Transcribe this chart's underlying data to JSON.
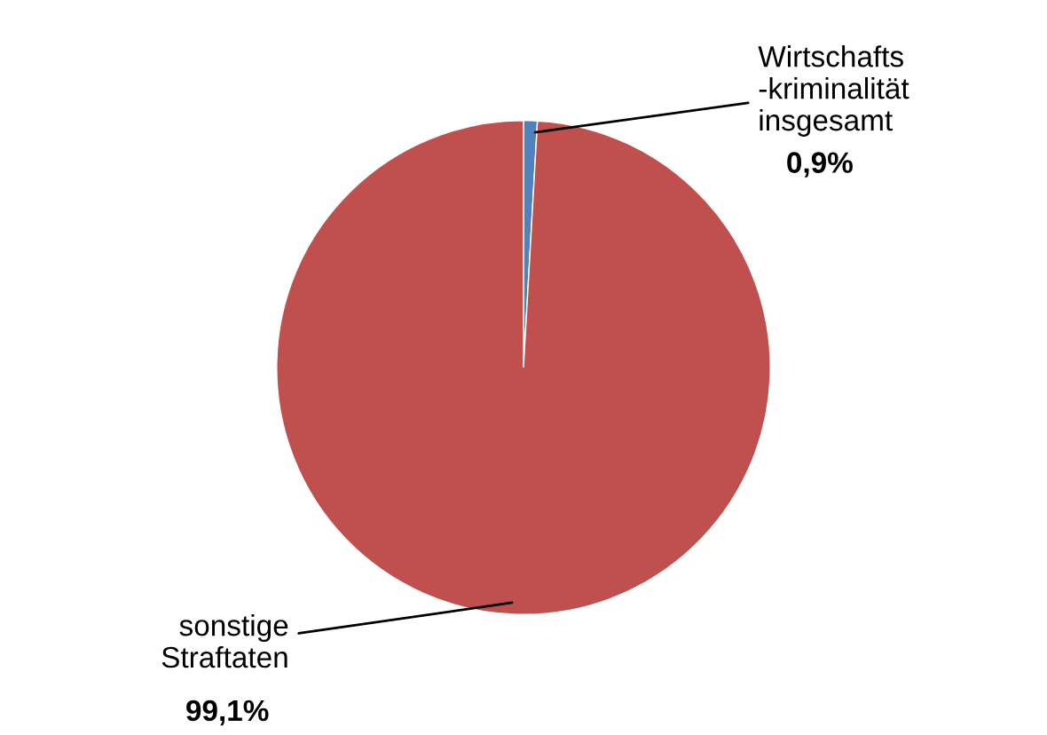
{
  "chart_data": {
    "type": "pie",
    "categories": [
      "Wirtschafts\n-kriminalität\ninsgesamt",
      "sonstige\nStraftaten"
    ],
    "values": [
      0.9,
      99.1
    ],
    "colors": [
      "#4f81bd",
      "#c0504d"
    ],
    "value_labels": [
      "0,9%",
      "99,1%"
    ],
    "legend": false
  }
}
